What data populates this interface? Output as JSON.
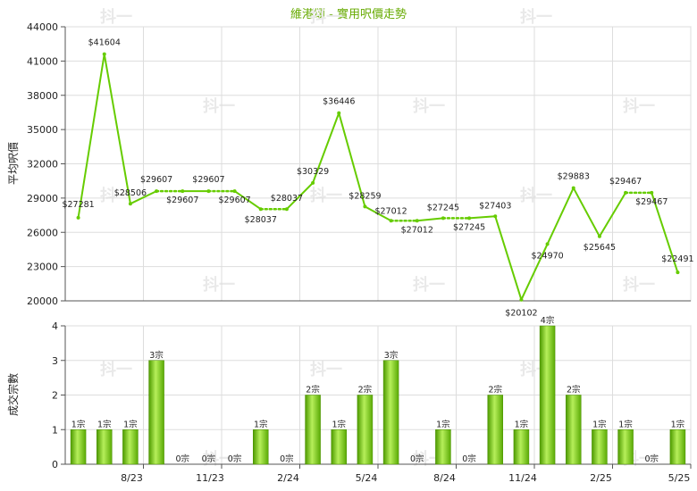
{
  "chart_data": [
    {
      "type": "line",
      "title": "維港頌 - 實用呎價走勢",
      "ylabel": "平均呎價",
      "ylim": [
        20000,
        44000
      ],
      "yticks": [
        20000,
        23000,
        26000,
        29000,
        32000,
        35000,
        38000,
        41000,
        44000
      ],
      "x_tick_labels": [
        "8/23",
        "11/23",
        "2/24",
        "5/24",
        "8/24",
        "11/24",
        "2/25",
        "5/25"
      ],
      "values": [
        27281,
        41604,
        28506,
        29607,
        29607,
        29607,
        29607,
        28037,
        28037,
        30329,
        36446,
        28259,
        27012,
        27012,
        27245,
        27245,
        27403,
        20102,
        24970,
        29883,
        25645,
        29467,
        29467,
        22491
      ],
      "value_labels": [
        "$27281",
        "$41604",
        "$28506",
        "$29607",
        "$29607",
        "$29607",
        "$29607",
        "$28037",
        "$28037",
        "$30329",
        "$36446",
        "$28259",
        "$27012",
        "$27012",
        "$27245",
        "$27245",
        "$27403",
        "$20102",
        "$24970",
        "$29883",
        "$25645",
        "$29467",
        "$29467",
        "$22491"
      ],
      "carried_forward": [
        false,
        false,
        false,
        false,
        true,
        false,
        true,
        false,
        true,
        false,
        false,
        false,
        false,
        true,
        false,
        true,
        false,
        false,
        false,
        false,
        false,
        false,
        true,
        false
      ],
      "line_color": "#66cc00",
      "grid": true
    },
    {
      "type": "bar",
      "ylabel": "成交宗數",
      "ylim": [
        0,
        4
      ],
      "yticks": [
        0,
        1,
        2,
        3,
        4
      ],
      "x_tick_labels": [
        "8/23",
        "11/23",
        "2/24",
        "5/24",
        "8/24",
        "11/24",
        "2/25",
        "5/25"
      ],
      "values": [
        1,
        1,
        1,
        3,
        0,
        0,
        0,
        1,
        0,
        2,
        1,
        2,
        3,
        0,
        1,
        0,
        2,
        1,
        4,
        2,
        1,
        1,
        0,
        1
      ],
      "value_labels": [
        "1宗",
        "1宗",
        "1宗",
        "3宗",
        "0宗",
        "0宗",
        "0宗",
        "1宗",
        "0宗",
        "2宗",
        "1宗",
        "2宗",
        "3宗",
        "0宗",
        "1宗",
        "0宗",
        "2宗",
        "1宗",
        "4宗",
        "2宗",
        "1宗",
        "1宗",
        "0宗",
        "1宗"
      ],
      "bar_color": "#66cc00",
      "grid": true
    }
  ],
  "watermark": "抖一"
}
